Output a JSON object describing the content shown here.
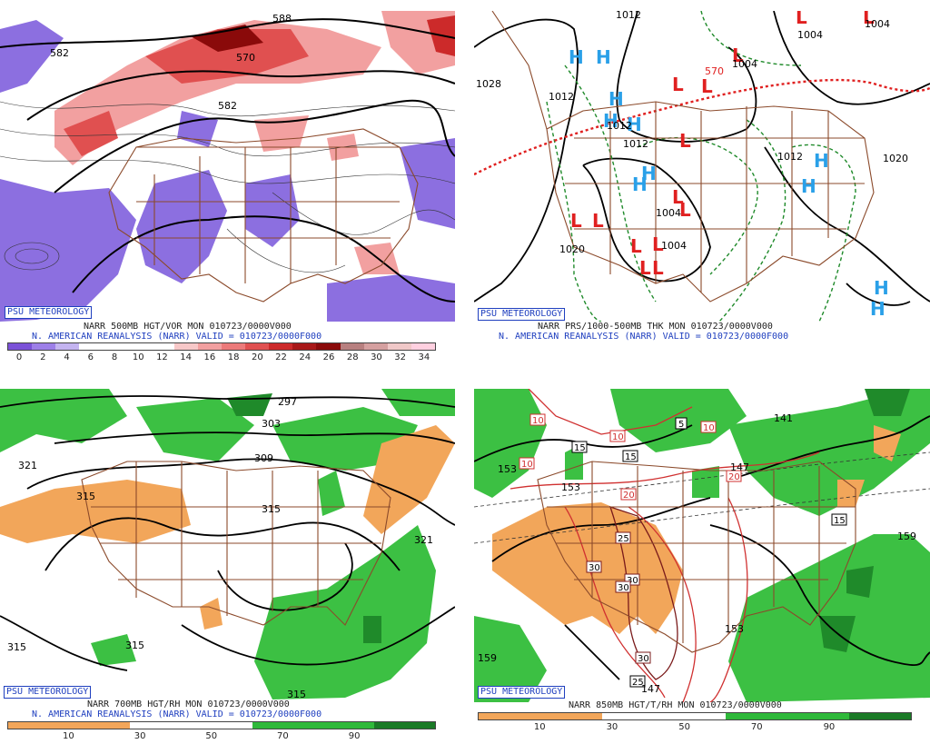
{
  "panels": [
    {
      "psu": "PSU METEOROLOGY",
      "caption1": "NARR 500MB HGT/VOR MON 010723/0000V000",
      "caption2": "N. AMERICAN REANALYSIS (NARR) VALID = 010723/0000F000",
      "scale": [
        "0",
        "2",
        "4",
        "6",
        "8",
        "10",
        "12",
        "14",
        "16",
        "18",
        "20",
        "22",
        "24",
        "26",
        "28",
        "30",
        "32",
        "34"
      ],
      "contour_labels": [
        "582",
        "570",
        "582",
        "588"
      ]
    },
    {
      "psu": "PSU METEOROLOGY",
      "caption1": "NARR PRS/1000-500MB THK MON 010723/0000V000",
      "caption2": "N. AMERICAN REANALYSIS (NARR) VALID = 010723/0000F000",
      "contour_labels": [
        "1012",
        "1028",
        "1020",
        "1012",
        "1012",
        "1004",
        "1004",
        "1012",
        "1004",
        "1012",
        "1020",
        "570",
        "1004",
        "1004"
      ]
    },
    {
      "psu": "PSU METEOROLOGY",
      "caption1": "NARR 700MB HGT/RH MON 010723/0000V000",
      "caption2": "N. AMERICAN REANALYSIS (NARR) VALID = 010723/0000F000",
      "scale": [
        "10",
        "30",
        "50",
        "70",
        "90"
      ],
      "contour_labels": [
        "297",
        "303",
        "309",
        "315",
        "315",
        "321",
        "321",
        "315",
        "315",
        "315"
      ]
    },
    {
      "psu": "PSU METEOROLOGY",
      "caption1": "NARR 850MB HGT/T/RH MON 010723/0000V000",
      "scale": [
        "10",
        "30",
        "50",
        "70",
        "90"
      ],
      "contour_labels": [
        "153",
        "159",
        "153",
        "141",
        "147",
        "159",
        "153",
        "147"
      ],
      "temp_labels": [
        "10",
        "10",
        "10",
        "15",
        "15",
        "5",
        "10",
        "20",
        "20",
        "15",
        "25",
        "30",
        "30",
        "30",
        "30",
        "25"
      ]
    }
  ],
  "colors": {
    "vor_scale": [
      "#7b52d8",
      "#9d7fe8",
      "#c4b4f0",
      "#ffffff",
      "#ffffff",
      "#ffffff",
      "#ffffff",
      "#f7c8c8",
      "#f2a0a0",
      "#ec7a7a",
      "#e05050",
      "#cc2a2a",
      "#a81818",
      "#8a0a0a",
      "#b88080",
      "#d5a0a0",
      "#f0c8c8",
      "#ffd0e0"
    ],
    "rh_scale": [
      "#f2a65a",
      "#f2a65a",
      "#ffffff",
      "#ffffff",
      "#2fb93a",
      "#2fb93a",
      "#1a7a26"
    ]
  }
}
